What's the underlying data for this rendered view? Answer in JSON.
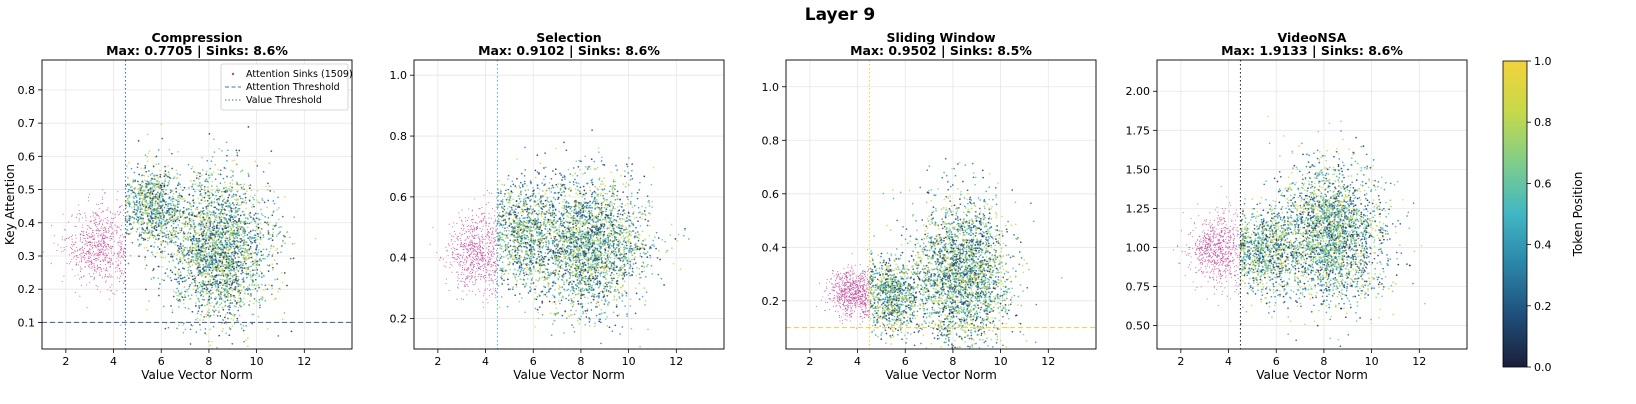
{
  "figure_title": "Layer 9",
  "chart_data": [
    {
      "type": "scatter",
      "title": "Compression",
      "subtitle": "Max: 0.7705 | Sinks: 8.6%",
      "xlabel": "Value Vector Norm",
      "ylabel": "Key Attention",
      "xlim": [
        1,
        14
      ],
      "ylim": [
        0.02,
        0.89
      ],
      "xticks": [
        2,
        4,
        6,
        8,
        10,
        12
      ],
      "yticks": [
        0.1,
        0.2,
        0.3,
        0.4,
        0.5,
        0.6,
        0.7,
        0.8
      ],
      "ytick_decimals": 1,
      "attention_threshold": 0.1,
      "value_threshold": 4.5,
      "threshold_color": "#4a6fa5",
      "sinks": {
        "x_center": 3.4,
        "x_spread": 0.7,
        "y_center": 0.33,
        "y_spread": 0.07
      },
      "bulk": {
        "x_center": 8.4,
        "x_spread": 1.1,
        "y_center": 0.32,
        "y_spread": 0.11
      },
      "side_blob": {
        "x_center": 5.7,
        "x_spread": 0.6,
        "y_center": 0.45,
        "y_spread": 0.06
      },
      "x_min_points": 4.5,
      "legend": [
        "Attention Sinks (1509)",
        "Attention Threshold",
        "Value Threshold"
      ],
      "grid": true
    },
    {
      "type": "scatter",
      "title": "Selection",
      "subtitle": "Max: 0.9102 | Sinks: 8.6%",
      "xlabel": "Value Vector Norm",
      "ylabel": "",
      "xlim": [
        1,
        14
      ],
      "ylim": [
        0.1,
        1.05
      ],
      "xticks": [
        2,
        4,
        6,
        8,
        10,
        12
      ],
      "yticks": [
        0.2,
        0.4,
        0.6,
        0.8,
        1.0
      ],
      "ytick_decimals": 1,
      "attention_threshold": 0.1,
      "value_threshold": 4.5,
      "threshold_color": "#5ab4d6",
      "sinks": {
        "x_center": 3.6,
        "x_spread": 0.6,
        "y_center": 0.42,
        "y_spread": 0.08
      },
      "bulk": {
        "x_center": 8.3,
        "x_spread": 1.2,
        "y_center": 0.44,
        "y_spread": 0.11
      },
      "side_blob": {
        "x_center": 5.6,
        "x_spread": 0.7,
        "y_center": 0.48,
        "y_spread": 0.09
      },
      "x_min_points": 4.5,
      "legend": [],
      "grid": true
    },
    {
      "type": "scatter",
      "title": "Sliding Window",
      "subtitle": "Max: 0.9502 | Sinks: 8.5%",
      "xlabel": "Value Vector Norm",
      "ylabel": "",
      "xlim": [
        1,
        14
      ],
      "ylim": [
        0.02,
        1.1
      ],
      "xticks": [
        2,
        4,
        6,
        8,
        10,
        12
      ],
      "yticks": [
        0.2,
        0.4,
        0.6,
        0.8,
        1.0
      ],
      "ytick_decimals": 1,
      "attention_threshold": 0.1,
      "value_threshold": 4.5,
      "threshold_color": "#f2d24a",
      "sinks": {
        "x_center": 3.8,
        "x_spread": 0.5,
        "y_center": 0.23,
        "y_spread": 0.05
      },
      "bulk": {
        "x_center": 8.4,
        "x_spread": 1.0,
        "y_center": 0.3,
        "y_spread": 0.14
      },
      "side_blob": {
        "x_center": 5.5,
        "x_spread": 0.6,
        "y_center": 0.22,
        "y_spread": 0.07
      },
      "x_min_points": 4.5,
      "legend": [],
      "grid": true
    },
    {
      "type": "scatter",
      "title": "VideoNSA",
      "subtitle": "Max: 1.9133 | Sinks: 8.6%",
      "xlabel": "Value Vector Norm",
      "ylabel": "",
      "xlim": [
        1,
        14
      ],
      "ylim": [
        0.35,
        2.2
      ],
      "xticks": [
        2,
        4,
        6,
        8,
        10,
        12
      ],
      "yticks": [
        0.5,
        0.75,
        1.0,
        1.25,
        1.5,
        1.75,
        2.0
      ],
      "ytick_decimals": 2,
      "attention_threshold": null,
      "value_threshold": 4.5,
      "threshold_color": "#333333",
      "sinks": {
        "x_center": 3.5,
        "x_spread": 0.6,
        "y_center": 0.98,
        "y_spread": 0.12
      },
      "bulk": {
        "x_center": 8.3,
        "x_spread": 1.1,
        "y_center": 1.08,
        "y_spread": 0.22
      },
      "side_blob": {
        "x_center": 5.5,
        "x_spread": 0.7,
        "y_center": 0.98,
        "y_spread": 0.13
      },
      "x_min_points": 4.5,
      "legend": [],
      "grid": true
    }
  ],
  "colorbar": {
    "label": "Token Position",
    "range": [
      0.0,
      1.0
    ],
    "ticks": [
      "0.0",
      "0.2",
      "0.4",
      "0.6",
      "0.8",
      "1.0"
    ],
    "colormap": [
      "#1b1f3a",
      "#1f4e79",
      "#2a85a8",
      "#41b6c4",
      "#7fcd8a",
      "#c6d94a",
      "#f2d33a"
    ]
  },
  "sink_color": "#c0449a"
}
